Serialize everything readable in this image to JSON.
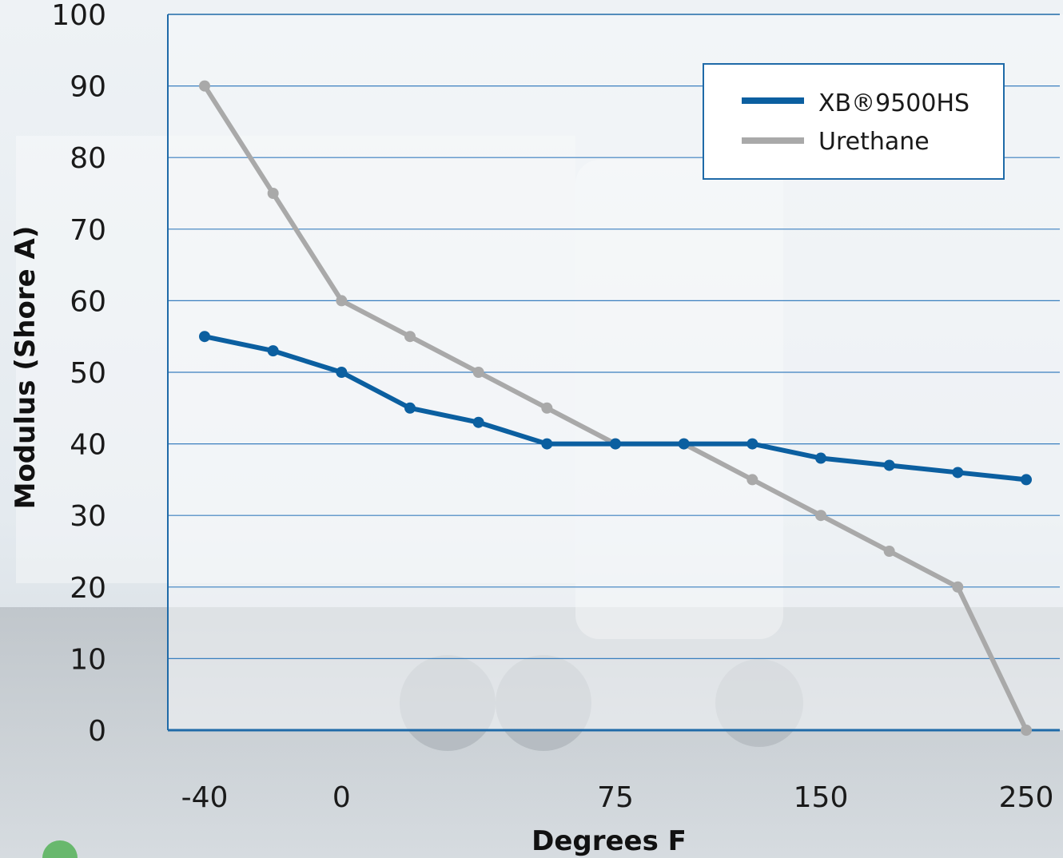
{
  "chart_data": {
    "type": "line",
    "title": "",
    "xlabel": "Degrees F",
    "ylabel": "Modulus (Shore A)",
    "ylim": [
      0,
      100
    ],
    "y_ticks": [
      "0",
      "10",
      "20",
      "30",
      "40",
      "50",
      "60",
      "70",
      "80",
      "90",
      "100"
    ],
    "x_tick_labels": [
      {
        "label": "-40",
        "index": 0
      },
      {
        "label": "0",
        "index": 2
      },
      {
        "label": "75",
        "index": 6
      },
      {
        "label": "150",
        "index": 9
      },
      {
        "label": "250",
        "index": 12
      }
    ],
    "point_count": 13,
    "grid": true,
    "legend_position": "top-right",
    "series": [
      {
        "name": "XB®9500HS",
        "color": "#0b5fa0",
        "values": [
          55,
          53,
          50,
          45,
          43,
          40,
          40,
          40,
          40,
          38,
          37,
          36,
          35
        ]
      },
      {
        "name": "Urethane",
        "color": "#a9a9a9",
        "values": [
          90,
          75,
          60,
          55,
          50,
          45,
          40,
          40,
          35,
          30,
          25,
          20,
          0
        ]
      }
    ]
  },
  "colors": {
    "axis": "#1f6aa8",
    "grid": "#3a7fbf",
    "plot_bg": "#f1f5f8"
  }
}
